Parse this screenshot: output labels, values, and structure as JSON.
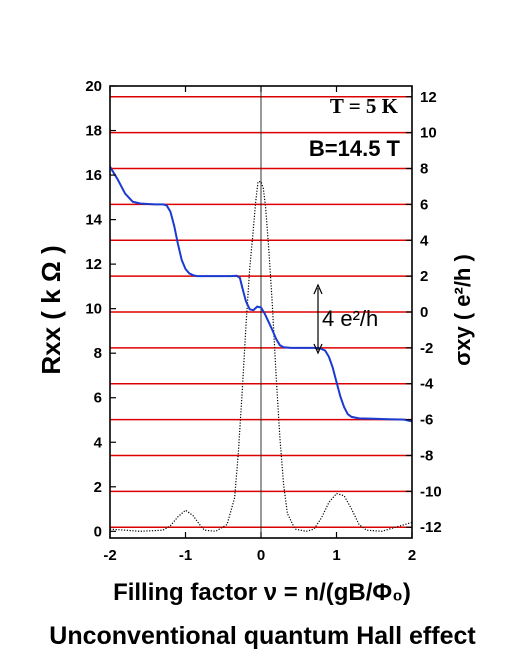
{
  "caption": "Unconventional quantum Hall effect",
  "chart_data": {
    "type": "line",
    "annotations": {
      "temperature": "T = 5 K",
      "field": "B=14.5 T",
      "step": "4 e²/h"
    },
    "xlabel": "Filling factor ν = n/(gB/Φ₀)",
    "ylabel_left": "Rxx ( k Ω )",
    "ylabel_right": "σxy ( e²/h )",
    "xlim": [
      -2,
      2
    ],
    "ylim_left": [
      -0.3,
      20
    ],
    "ylim_right": [
      -12.6,
      12.6
    ],
    "x_ticks": [
      "-2",
      "-1",
      "0",
      "1",
      "2"
    ],
    "y_left_ticks": [
      "0",
      "2",
      "4",
      "6",
      "8",
      "10",
      "12",
      "14",
      "16",
      "18",
      "20"
    ],
    "y_right_ticks": [
      "12",
      "10",
      "8",
      "6",
      "4",
      "2",
      "0",
      "-2",
      "-4",
      "-6",
      "-8",
      "-10",
      "-12"
    ],
    "reference_lines_sigma": [
      -12,
      -10,
      -8,
      -6,
      -4,
      -2,
      0,
      2,
      4,
      6,
      8,
      10,
      12
    ],
    "reference_line_color": "#dd0000",
    "series": [
      {
        "color": "#1a3ad0",
        "axis": "right",
        "x": [
          -2.0,
          -1.9,
          -1.8,
          -1.7,
          -1.6,
          -1.5,
          -1.4,
          -1.3,
          -1.25,
          -1.2,
          -1.15,
          -1.1,
          -1.05,
          -1.0,
          -0.95,
          -0.9,
          -0.85,
          -0.8,
          -0.7,
          -0.6,
          -0.5,
          -0.4,
          -0.32,
          -0.28,
          -0.25,
          -0.2,
          -0.15,
          -0.1,
          -0.05,
          0.0,
          0.05,
          0.1,
          0.15,
          0.2,
          0.25,
          0.3,
          0.4,
          0.5,
          0.6,
          0.7,
          0.78,
          0.85,
          0.9,
          0.95,
          1.0,
          1.05,
          1.1,
          1.15,
          1.2,
          1.3,
          1.5,
          1.7,
          1.9,
          2.0
        ],
        "values": [
          8.1,
          7.4,
          6.6,
          6.15,
          6.05,
          6.02,
          6.0,
          6.0,
          5.95,
          5.6,
          4.8,
          3.8,
          2.9,
          2.4,
          2.15,
          2.05,
          2.0,
          2.0,
          2.0,
          2.0,
          2.0,
          2.0,
          2.02,
          1.9,
          1.4,
          0.6,
          0.15,
          0.1,
          0.3,
          0.25,
          -0.1,
          -0.55,
          -1.0,
          -1.5,
          -1.85,
          -1.97,
          -2.0,
          -2.0,
          -2.0,
          -2.0,
          -2.02,
          -2.15,
          -2.5,
          -3.1,
          -3.9,
          -4.7,
          -5.3,
          -5.7,
          -5.85,
          -5.93,
          -5.95,
          -5.98,
          -6.0,
          -6.1
        ]
      },
      {
        "color": "#000000",
        "axis": "left",
        "x": [
          -2.0,
          -1.6,
          -1.3,
          -1.2,
          -1.1,
          -1.0,
          -0.9,
          -0.8,
          -0.75,
          -0.6,
          -0.45,
          -0.35,
          -0.3,
          -0.25,
          -0.2,
          -0.15,
          -0.1,
          -0.07,
          -0.04,
          0.0,
          0.03,
          0.06,
          0.1,
          0.15,
          0.2,
          0.25,
          0.3,
          0.35,
          0.45,
          0.6,
          0.7,
          0.8,
          0.9,
          1.0,
          1.1,
          1.2,
          1.3,
          1.4,
          1.6,
          2.0
        ],
        "values": [
          0.1,
          0.0,
          0.05,
          0.25,
          0.65,
          0.95,
          0.7,
          0.25,
          0.05,
          0.0,
          0.3,
          1.5,
          3.5,
          6.2,
          9.2,
          11.8,
          13.6,
          14.8,
          15.7,
          15.7,
          15.4,
          14.6,
          12.8,
          10.2,
          7.0,
          4.2,
          2.1,
          0.8,
          0.1,
          0.0,
          0.1,
          0.6,
          1.3,
          1.7,
          1.6,
          1.0,
          0.3,
          0.05,
          0.0,
          0.4
        ]
      }
    ]
  }
}
